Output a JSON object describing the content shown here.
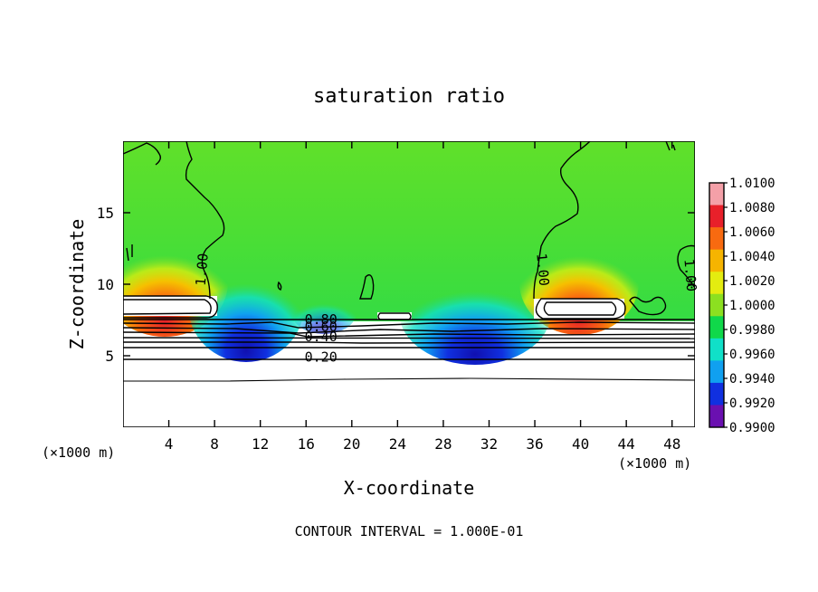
{
  "chart_data": {
    "type": "heatmap",
    "title": "saturation ratio",
    "xlabel": "X-coordinate",
    "ylabel": "Z-coordinate",
    "x_unit_label": "(×1000 m)",
    "z_unit_label": "(×1000 m)",
    "xlim": [
      0,
      50
    ],
    "ylim": [
      0,
      20
    ],
    "x_ticks": [
      4,
      8,
      12,
      16,
      20,
      24,
      28,
      32,
      36,
      40,
      44,
      48
    ],
    "y_ticks": [
      5,
      10,
      15
    ],
    "footer": "CONTOUR INTERVAL = 1.000E-01",
    "colorbar": {
      "ticks": [
        "1.0100",
        "1.0080",
        "1.0060",
        "1.0040",
        "1.0020",
        "1.0000",
        "0.9980",
        "0.9960",
        "0.9940",
        "0.9920",
        "0.9900"
      ],
      "colors": [
        "#f4a0a8",
        "#e8202a",
        "#f86a10",
        "#f6b400",
        "#e4ec10",
        "#8ce020",
        "#10d84a",
        "#10e0c8",
        "#10a0f0",
        "#1030e0",
        "#6a10b0"
      ]
    },
    "contour_labels": [
      {
        "text": "1.00",
        "x": 7.3,
        "z": 11.0,
        "rotate": -85
      },
      {
        "text": "1.00",
        "x": 36.3,
        "z": 11.0,
        "rotate": 85
      },
      {
        "text": "1.00",
        "x": 49.2,
        "z": 10.6,
        "rotate": 85
      },
      {
        "text": "0.80",
        "x": 17.3,
        "z": 7.2,
        "rotate": 0
      },
      {
        "text": "0.60",
        "x": 17.3,
        "z": 6.7,
        "rotate": 0
      },
      {
        "text": "0.40",
        "x": 17.3,
        "z": 6.0,
        "rotate": 0
      },
      {
        "text": "0.20",
        "x": 17.3,
        "z": 4.6,
        "rotate": 0
      }
    ]
  }
}
